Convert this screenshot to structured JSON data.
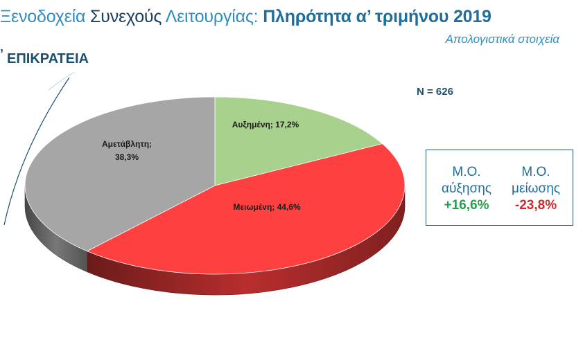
{
  "header": {
    "title_part1": "Ξενοδοχεία",
    "title_part2": "Συνεχούς",
    "title_part3": "Λειτουργίας:",
    "title_part4": "Πληρότητα α’ τριμήνου 2019",
    "subtitle": "Απολογιστικά στοιχεία",
    "region": "ΕΠΙΚΡΑΤΕΙΑ"
  },
  "sample": {
    "label": "N = 626"
  },
  "stats": {
    "increase": {
      "line1": "Μ.Ο.",
      "line2": "αύξησης",
      "value": "+16,6%"
    },
    "decrease": {
      "line1": "Μ.Ο.",
      "line2": "μείωσης",
      "value": "-23,8%"
    }
  },
  "chart_data": {
    "type": "pie",
    "title": "",
    "slices": [
      {
        "label": "Αυξημένη; 17,2%",
        "category": "Αυξημένη",
        "value": 17.2,
        "color": "#a9d18e"
      },
      {
        "label": "Μειωμένη; 44,6%",
        "category": "Μειωμένη",
        "value": 44.6,
        "color": "#ff4040"
      },
      {
        "label": "Αμετάβλητη; 38,3%",
        "category": "Αμετάβλητη",
        "value": 38.3,
        "color": "#a6a6a6"
      }
    ],
    "colors": {
      "increase": "#a9d18e",
      "decrease": "#ff4040",
      "unchanged": "#a6a6a6"
    }
  }
}
